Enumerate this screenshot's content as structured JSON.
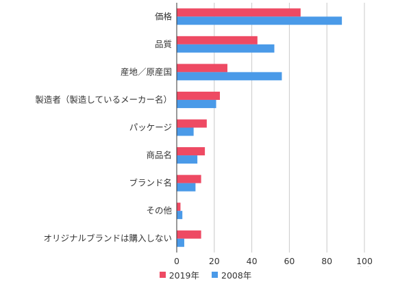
{
  "chart_data": {
    "type": "bar",
    "orientation": "horizontal",
    "categories": [
      "価格",
      "品質",
      "産地／原産国",
      "製造者（製造しているメーカー名）",
      "パッケージ",
      "商品名",
      "ブランド名",
      "その他",
      "オリジナルブランドは購入しない"
    ],
    "series": [
      {
        "name": "2019年",
        "color": "#ee4a63",
        "values": [
          66,
          43,
          27,
          23,
          16,
          15,
          13,
          2,
          13
        ]
      },
      {
        "name": "2008年",
        "color": "#4a9ae8",
        "values": [
          88,
          52,
          56,
          21,
          9,
          11,
          10,
          3,
          4
        ]
      }
    ],
    "xlim": [
      0,
      100
    ],
    "ticks": [
      "0",
      "20",
      "40",
      "60",
      "80",
      "100"
    ],
    "unit": "（%）",
    "grid": true,
    "legend_position": "bottom"
  }
}
